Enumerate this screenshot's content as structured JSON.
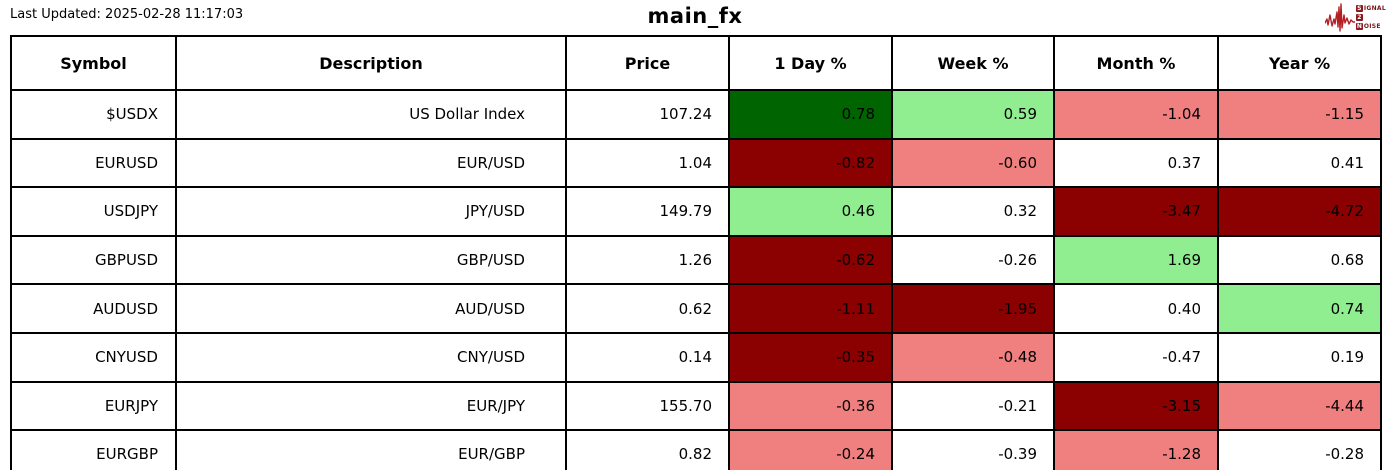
{
  "header": {
    "last_updated": "Last Updated: 2025-02-28 11:17:03",
    "title": "main_fx"
  },
  "logo": {
    "brand": "Signal 2 Noise",
    "color": "#9b1c1f",
    "s": "S",
    "ignal": "IGNAL",
    "two": "2",
    "n": "N",
    "oise": "OISE"
  },
  "colors": {
    "gain_strong": "#006400",
    "gain_mild": "#90EE90",
    "loss_mild": "#F08080",
    "loss_strong": "#8B0000",
    "flat": "#FFFFFF"
  },
  "table": {
    "columns": [
      "Symbol",
      "Description",
      "Price",
      "1 Day %",
      "Week %",
      "Month %",
      "Year %"
    ],
    "rows": [
      {
        "symbol": "$USDX",
        "description": "US Dollar Index",
        "price": "107.24",
        "changes": [
          {
            "value": "0.78",
            "tone": "gain_strong"
          },
          {
            "value": "0.59",
            "tone": "gain_mild"
          },
          {
            "value": "-1.04",
            "tone": "loss_mild"
          },
          {
            "value": "-1.15",
            "tone": "loss_mild"
          }
        ]
      },
      {
        "symbol": "EURUSD",
        "description": "EUR/USD",
        "price": "1.04",
        "changes": [
          {
            "value": "-0.82",
            "tone": "loss_strong"
          },
          {
            "value": "-0.60",
            "tone": "loss_mild"
          },
          {
            "value": "0.37",
            "tone": "flat"
          },
          {
            "value": "0.41",
            "tone": "flat"
          }
        ]
      },
      {
        "symbol": "USDJPY",
        "description": "JPY/USD",
        "price": "149.79",
        "changes": [
          {
            "value": "0.46",
            "tone": "gain_mild"
          },
          {
            "value": "0.32",
            "tone": "flat"
          },
          {
            "value": "-3.47",
            "tone": "loss_strong"
          },
          {
            "value": "-4.72",
            "tone": "loss_strong"
          }
        ]
      },
      {
        "symbol": "GBPUSD",
        "description": "GBP/USD",
        "price": "1.26",
        "changes": [
          {
            "value": "-0.62",
            "tone": "loss_strong"
          },
          {
            "value": "-0.26",
            "tone": "flat"
          },
          {
            "value": "1.69",
            "tone": "gain_mild"
          },
          {
            "value": "0.68",
            "tone": "flat"
          }
        ]
      },
      {
        "symbol": "AUDUSD",
        "description": "AUD/USD",
        "price": "0.62",
        "changes": [
          {
            "value": "-1.11",
            "tone": "loss_strong"
          },
          {
            "value": "-1.95",
            "tone": "loss_strong"
          },
          {
            "value": "0.40",
            "tone": "flat"
          },
          {
            "value": "0.74",
            "tone": "gain_mild"
          }
        ]
      },
      {
        "symbol": "CNYUSD",
        "description": "CNY/USD",
        "price": "0.14",
        "changes": [
          {
            "value": "-0.35",
            "tone": "loss_strong"
          },
          {
            "value": "-0.48",
            "tone": "loss_mild"
          },
          {
            "value": "-0.47",
            "tone": "flat"
          },
          {
            "value": "0.19",
            "tone": "flat"
          }
        ]
      },
      {
        "symbol": "EURJPY",
        "description": "EUR/JPY",
        "price": "155.70",
        "changes": [
          {
            "value": "-0.36",
            "tone": "loss_mild"
          },
          {
            "value": "-0.21",
            "tone": "flat"
          },
          {
            "value": "-3.15",
            "tone": "loss_strong"
          },
          {
            "value": "-4.44",
            "tone": "loss_mild"
          }
        ]
      },
      {
        "symbol": "EURGBP",
        "description": "EUR/GBP",
        "price": "0.82",
        "changes": [
          {
            "value": "-0.24",
            "tone": "loss_mild"
          },
          {
            "value": "-0.39",
            "tone": "flat"
          },
          {
            "value": "-1.28",
            "tone": "loss_mild"
          },
          {
            "value": "-0.28",
            "tone": "flat"
          }
        ]
      }
    ]
  },
  "chart_data": {
    "type": "table",
    "title": "main_fx",
    "last_updated": "2025-02-28 11:17:03",
    "columns": [
      "Symbol",
      "Description",
      "Price",
      "1 Day %",
      "Week %",
      "Month %",
      "Year %"
    ],
    "rows": [
      [
        "$USDX",
        "US Dollar Index",
        107.24,
        0.78,
        0.59,
        -1.04,
        -1.15
      ],
      [
        "EURUSD",
        "EUR/USD",
        1.04,
        -0.82,
        -0.6,
        0.37,
        0.41
      ],
      [
        "USDJPY",
        "JPY/USD",
        149.79,
        0.46,
        0.32,
        -3.47,
        -4.72
      ],
      [
        "GBPUSD",
        "GBP/USD",
        1.26,
        -0.62,
        -0.26,
        1.69,
        0.68
      ],
      [
        "AUDUSD",
        "AUD/USD",
        0.62,
        -1.11,
        -1.95,
        0.4,
        0.74
      ],
      [
        "CNYUSD",
        "CNY/USD",
        0.14,
        -0.35,
        -0.48,
        -0.47,
        0.19
      ],
      [
        "EURJPY",
        "EUR/JPY",
        155.7,
        -0.36,
        -0.21,
        -3.15,
        -4.44
      ],
      [
        "EURGBP",
        "EUR/GBP",
        0.82,
        -0.24,
        -0.39,
        -1.28,
        -0.28
      ]
    ],
    "cell_color_legend": {
      "#006400": "strong gain",
      "#90EE90": "mild gain",
      "#F08080": "mild loss",
      "#8B0000": "strong loss",
      "#FFFFFF": "neutral"
    }
  }
}
